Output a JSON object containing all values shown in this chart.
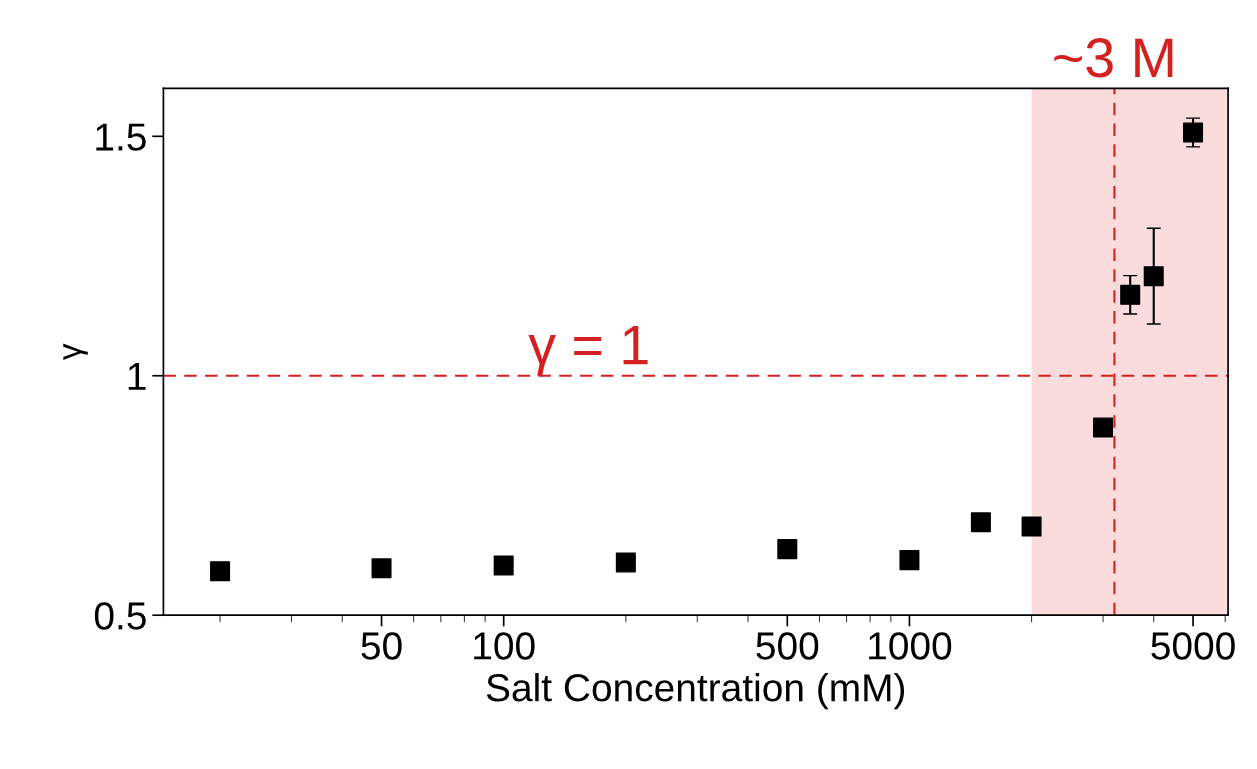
{
  "chart_data": {
    "type": "scatter",
    "xlabel": "Salt Concentration (mM)",
    "ylabel": "γ",
    "x": [
      20,
      50,
      100,
      200,
      500,
      1000,
      1500,
      2000,
      3000,
      3500,
      4000,
      5000
    ],
    "series": [
      {
        "color": "#000000",
        "values": [
          0.592,
          0.598,
          0.604,
          0.61,
          0.638,
          0.615,
          0.694,
          0.685,
          0.892,
          1.169,
          1.208,
          1.508
        ],
        "errors": [
          null,
          null,
          null,
          null,
          null,
          null,
          null,
          null,
          null,
          0.04,
          0.1,
          0.03
        ]
      }
    ],
    "log": "x",
    "xlim": [
      14.5,
      6100
    ],
    "xticks": [
      50,
      100,
      500,
      1000,
      5000
    ],
    "ylim": [
      0.5,
      1.6
    ],
    "yticks": [
      0.5,
      1,
      1.5
    ],
    "marker": "square",
    "grid": false,
    "legend": false,
    "ref_lines": [
      {
        "axis": "y",
        "value": 1,
        "label": "γ = 1",
        "color": "#d42020",
        "line_style": "dashed"
      },
      {
        "axis": "x",
        "value": 3200,
        "label": "~3 M",
        "color": "#d42020",
        "line_style": "dashed"
      }
    ],
    "bands": [
      {
        "axis": "x",
        "from": 2000,
        "to": 6100,
        "color": "#fbdcdc"
      }
    ]
  }
}
